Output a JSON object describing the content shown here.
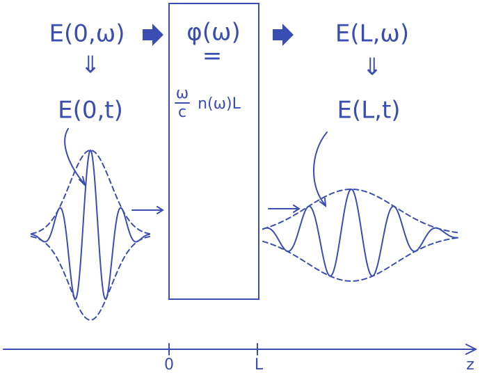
{
  "left": {
    "spectrum": "E(0,ω)",
    "arrow": "⇓",
    "field": "E(0,t)"
  },
  "medium": {
    "phase": "φ(ω)",
    "equals": "=",
    "numerator": "ω",
    "denominator": "c",
    "rest": "n(ω)L"
  },
  "right": {
    "spectrum": "E(L,ω)",
    "arrow": "⇓",
    "field": "E(L,t)"
  },
  "axis": {
    "start": "0",
    "end": "L",
    "label": "z"
  }
}
